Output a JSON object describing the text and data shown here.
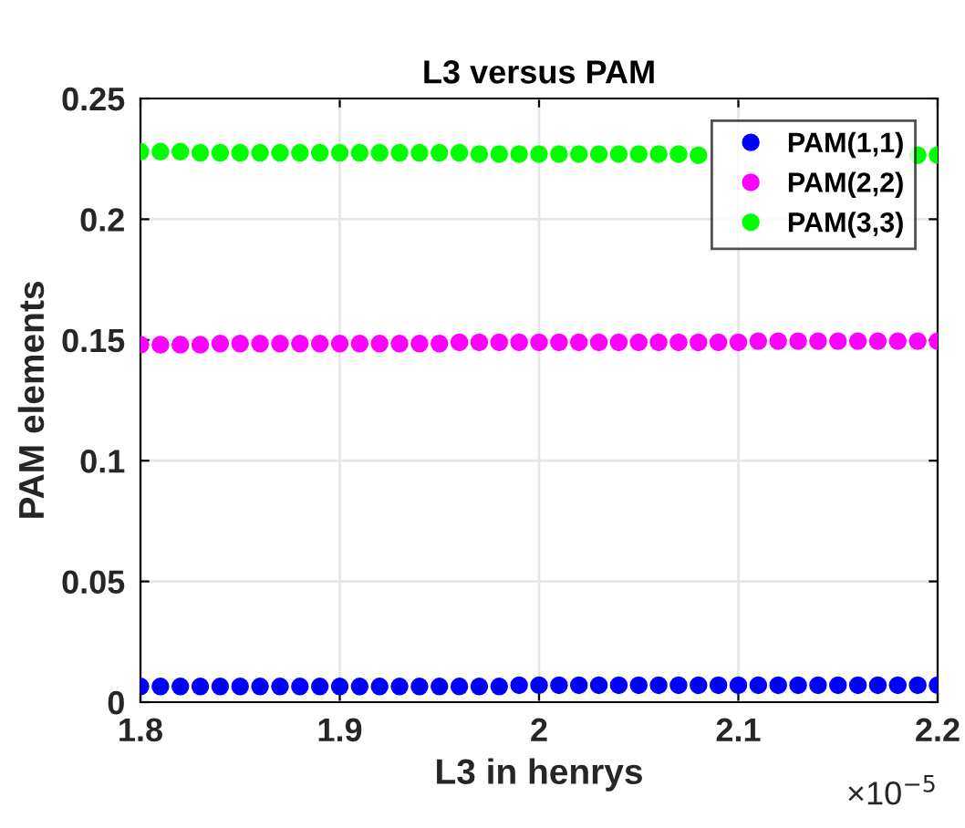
{
  "chart_data": {
    "type": "scatter",
    "title": "L3 versus PAM",
    "xlabel": "L3 in henrys",
    "ylabel": "PAM elements",
    "x": [
      1.8,
      1.81,
      1.82,
      1.83,
      1.84,
      1.85,
      1.86,
      1.87,
      1.88,
      1.89,
      1.9,
      1.91,
      1.92,
      1.93,
      1.94,
      1.95,
      1.96,
      1.97,
      1.98,
      1.99,
      2.0,
      2.01,
      2.02,
      2.03,
      2.04,
      2.05,
      2.06,
      2.07,
      2.08,
      2.09,
      2.1,
      2.11,
      2.12,
      2.13,
      2.14,
      2.15,
      2.16,
      2.17,
      2.18,
      2.19,
      2.2
    ],
    "series": [
      {
        "name": "PAM(1,1)",
        "color": "#0000ff",
        "values": [
          0.0065,
          0.0065,
          0.0065,
          0.0065,
          0.0065,
          0.0065,
          0.0065,
          0.0065,
          0.0065,
          0.0065,
          0.0065,
          0.0065,
          0.0065,
          0.0065,
          0.0065,
          0.0065,
          0.0065,
          0.0065,
          0.0065,
          0.007,
          0.007,
          0.007,
          0.007,
          0.007,
          0.007,
          0.007,
          0.007,
          0.007,
          0.007,
          0.007,
          0.007,
          0.007,
          0.007,
          0.007,
          0.007,
          0.007,
          0.007,
          0.007,
          0.007,
          0.007,
          0.007
        ]
      },
      {
        "name": "PAM(2,2)",
        "color": "#ff00ff",
        "values": [
          0.148,
          0.148,
          0.148,
          0.148,
          0.1485,
          0.1485,
          0.1485,
          0.1485,
          0.1485,
          0.1485,
          0.1485,
          0.1485,
          0.1485,
          0.1485,
          0.1485,
          0.1485,
          0.149,
          0.149,
          0.149,
          0.149,
          0.149,
          0.149,
          0.149,
          0.149,
          0.149,
          0.149,
          0.149,
          0.149,
          0.149,
          0.149,
          0.149,
          0.1495,
          0.1495,
          0.1495,
          0.1495,
          0.1495,
          0.1495,
          0.1495,
          0.1495,
          0.1495,
          0.1495
        ]
      },
      {
        "name": "PAM(3,3)",
        "color": "#00ff00",
        "values": [
          0.228,
          0.228,
          0.228,
          0.2275,
          0.2275,
          0.2275,
          0.2275,
          0.2275,
          0.2275,
          0.2275,
          0.2275,
          0.2275,
          0.2275,
          0.2275,
          0.2275,
          0.2275,
          0.2275,
          0.227,
          0.227,
          0.227,
          0.227,
          0.227,
          0.227,
          0.227,
          0.227,
          0.227,
          0.227,
          0.227,
          0.2265,
          null,
          null,
          null,
          null,
          null,
          null,
          null,
          null,
          null,
          null,
          0.2265,
          0.2265
        ]
      }
    ],
    "xlim": [
      1.8,
      2.2
    ],
    "xticks": [
      1.8,
      1.9,
      2,
      2.1,
      2.2
    ],
    "ylim": [
      0,
      0.25
    ],
    "yticks": [
      0,
      0.05,
      0.1,
      0.15,
      0.2,
      0.25
    ],
    "annotations": [
      "×10$^{−5}$"
    ],
    "grid": true,
    "legend": "top right",
    "marker": "circle"
  }
}
